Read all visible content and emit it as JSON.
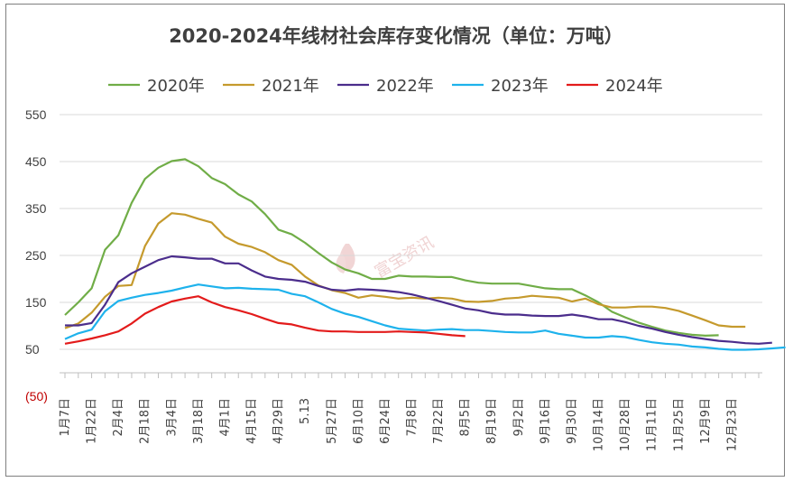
{
  "chart_data": {
    "type": "line",
    "title": "2020-2024年线材社会库存变化情况（单位：万吨）",
    "watermark": "富宝资讯",
    "ylim": [
      -50,
      550
    ],
    "yticks": [
      550,
      450,
      350,
      250,
      150,
      50,
      -50
    ],
    "ytick_labels": [
      "550",
      "450",
      "350",
      "250",
      "150",
      "50",
      "(50)"
    ],
    "grid": true,
    "legend_position": "top",
    "x_labels": [
      "1月7日",
      "1月22日",
      "2月4日",
      "2月18日",
      "3月4日",
      "3月18日",
      "4月1日",
      "4月15日",
      "4月29日",
      "5.13",
      "5月27日",
      "6月10日",
      "6月24日",
      "7月8日",
      "7月22日",
      "8月5日",
      "8月19日",
      "9月2日",
      "9月16日",
      "9月30日",
      "10月14日",
      "10月28日",
      "11月11日",
      "11月25日",
      "12月9日",
      "12月23日"
    ],
    "x_points_per_label": 2,
    "series": [
      {
        "name": "2020年",
        "color": "#70ad47",
        "values": [
          123,
          150,
          180,
          262,
          293,
          362,
          413,
          437,
          451,
          455,
          440,
          415,
          402,
          380,
          365,
          338,
          305,
          295,
          277,
          255,
          235,
          220,
          212,
          200,
          200,
          207,
          205,
          205,
          204,
          204,
          197,
          192,
          190,
          190,
          190,
          185,
          180,
          178,
          178,
          165,
          150,
          130,
          118,
          107,
          98,
          90,
          85,
          81,
          79,
          80
        ]
      },
      {
        "name": "2021年",
        "color": "#c59a2d",
        "values": [
          95,
          105,
          128,
          162,
          185,
          187,
          270,
          318,
          340,
          337,
          328,
          320,
          290,
          275,
          268,
          257,
          240,
          230,
          205,
          186,
          176,
          170,
          160,
          165,
          162,
          158,
          160,
          158,
          160,
          158,
          152,
          151,
          153,
          158,
          160,
          164,
          162,
          160,
          152,
          158,
          146,
          139,
          139,
          141,
          141,
          138,
          132,
          122,
          112,
          101,
          98,
          98
        ]
      },
      {
        "name": "2022年",
        "color": "#4b2d8c",
        "values": [
          101,
          101,
          106,
          145,
          193,
          212,
          226,
          240,
          248,
          246,
          243,
          243,
          233,
          233,
          218,
          205,
          200,
          198,
          194,
          185,
          177,
          175,
          178,
          177,
          175,
          172,
          167,
          160,
          153,
          145,
          137,
          133,
          127,
          124,
          124,
          122,
          121,
          121,
          124,
          120,
          114,
          114,
          108,
          100,
          94,
          87,
          81,
          76,
          72,
          68,
          66,
          63,
          62,
          64
        ]
      },
      {
        "name": "2023年",
        "color": "#1eb2ec",
        "values": [
          72,
          84,
          92,
          131,
          153,
          160,
          166,
          170,
          175,
          182,
          188,
          184,
          180,
          181,
          179,
          178,
          177,
          168,
          163,
          150,
          136,
          126,
          119,
          110,
          101,
          94,
          92,
          90,
          92,
          93,
          91,
          91,
          89,
          87,
          86,
          86,
          90,
          83,
          79,
          75,
          75,
          78,
          76,
          70,
          65,
          62,
          60,
          56,
          54,
          51,
          49,
          49,
          50,
          52,
          54
        ]
      },
      {
        "name": "2024年",
        "color": "#e31b1b",
        "values": [
          62,
          67,
          73,
          80,
          88,
          105,
          126,
          140,
          152,
          158,
          163,
          150,
          140,
          133,
          125,
          115,
          106,
          103,
          96,
          90,
          88,
          88,
          87,
          87,
          87,
          88,
          87,
          86,
          83,
          80,
          78
        ]
      }
    ]
  }
}
